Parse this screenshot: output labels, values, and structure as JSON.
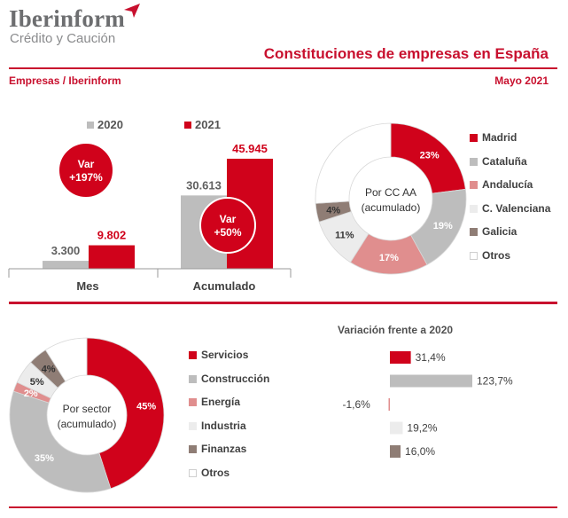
{
  "header": {
    "logo_name": "Iberinform",
    "logo_tagline": "Crédito y Caución",
    "title": "Constituciones de empresas en España",
    "source_label": "Empresas / Iberinform",
    "date_label": "Mayo 2021"
  },
  "colors": {
    "red": "#d0021b",
    "gray": "#bdbdbd",
    "pink": "#e08e8e",
    "light": "#ececec",
    "brown": "#8f7d75",
    "white": "#ffffff",
    "accent": "#c8102e"
  },
  "chart_data": [
    {
      "type": "bar",
      "categories": [
        "Mes",
        "Acumulado"
      ],
      "series": [
        {
          "name": "2020",
          "values": [
            3300,
            30613
          ],
          "labels": [
            "3.300",
            "30.613"
          ]
        },
        {
          "name": "2021",
          "values": [
            9802,
            45945
          ],
          "labels": [
            "9.802",
            "45.945"
          ]
        }
      ],
      "annotations": [
        {
          "category": "Mes",
          "line1": "Var",
          "line2": "+197%"
        },
        {
          "category": "Acumulado",
          "line1": "Var",
          "line2": "+50%"
        }
      ],
      "ylim": [
        0,
        50000
      ],
      "legend": "top"
    },
    {
      "type": "pie",
      "center_label": [
        "Por CC AA",
        "(acumulado)"
      ],
      "slices": [
        {
          "label": "Madrid",
          "value": 23,
          "text": "23%"
        },
        {
          "label": "Cataluña",
          "value": 19,
          "text": "19%"
        },
        {
          "label": "Andalucía",
          "value": 17,
          "text": "17%"
        },
        {
          "label": "C. Valenciana",
          "value": 11,
          "text": "11%"
        },
        {
          "label": "Galicia",
          "value": 4,
          "text": "4%"
        },
        {
          "label": "Otros",
          "value": 26,
          "text": ""
        }
      ],
      "legend": "right"
    },
    {
      "type": "pie",
      "center_label": [
        "Por sector",
        "(acumulado)"
      ],
      "slices": [
        {
          "label": "Servicios",
          "value": 45,
          "text": "45%"
        },
        {
          "label": "Construcción",
          "value": 35,
          "text": "35%"
        },
        {
          "label": "Energía",
          "value": 2,
          "text": "2%"
        },
        {
          "label": "Industria",
          "value": 5,
          "text": "5%"
        },
        {
          "label": "Finanzas",
          "value": 4,
          "text": "4%"
        },
        {
          "label": "Otros",
          "value": 9,
          "text": ""
        }
      ],
      "legend": "right"
    },
    {
      "type": "bar",
      "orientation": "horizontal",
      "title": "Variación frente a 2020",
      "categories": [
        "Servicios",
        "Construcción",
        "Energía",
        "Industria",
        "Finanzas"
      ],
      "values": [
        31.4,
        123.7,
        -1.6,
        19.2,
        16.0
      ],
      "labels": [
        "31,4%",
        "123,7%",
        "-1,6%",
        "19,2%",
        "16,0%"
      ]
    }
  ]
}
